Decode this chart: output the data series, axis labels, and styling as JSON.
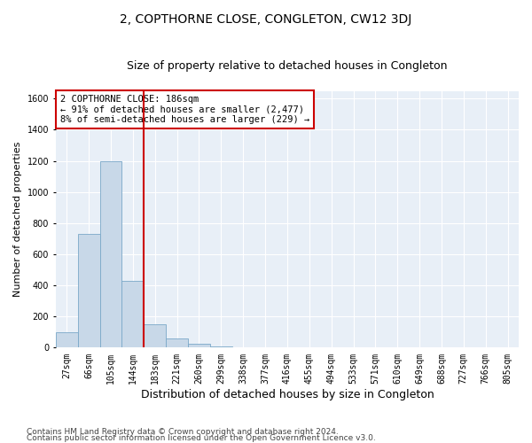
{
  "title": "2, COPTHORNE CLOSE, CONGLETON, CW12 3DJ",
  "subtitle": "Size of property relative to detached houses in Congleton",
  "xlabel": "Distribution of detached houses by size in Congleton",
  "ylabel": "Number of detached properties",
  "footer_line1": "Contains HM Land Registry data © Crown copyright and database right 2024.",
  "footer_line2": "Contains public sector information licensed under the Open Government Licence v3.0.",
  "bar_labels": [
    "27sqm",
    "66sqm",
    "105sqm",
    "144sqm",
    "183sqm",
    "221sqm",
    "260sqm",
    "299sqm",
    "338sqm",
    "377sqm",
    "416sqm",
    "455sqm",
    "494sqm",
    "533sqm",
    "571sqm",
    "610sqm",
    "649sqm",
    "688sqm",
    "727sqm",
    "766sqm",
    "805sqm"
  ],
  "bar_values": [
    100,
    730,
    1200,
    430,
    150,
    60,
    25,
    10,
    0,
    0,
    0,
    0,
    0,
    0,
    0,
    0,
    0,
    0,
    0,
    0,
    0
  ],
  "bar_color": "#c8d8e8",
  "bar_edgecolor": "#7aa8c8",
  "vline_color": "#cc0000",
  "annotation_text": "2 COPTHORNE CLOSE: 186sqm\n← 91% of detached houses are smaller (2,477)\n8% of semi-detached houses are larger (229) →",
  "annotation_box_edgecolor": "#cc0000",
  "annotation_box_facecolor": "#ffffff",
  "ylim_max": 1650,
  "yticks": [
    0,
    200,
    400,
    600,
    800,
    1000,
    1200,
    1400,
    1600
  ],
  "background_color": "#ffffff",
  "plot_bg_color": "#e8eff7",
  "grid_color": "#ffffff",
  "title_fontsize": 10,
  "subtitle_fontsize": 9,
  "tick_fontsize": 7,
  "ylabel_fontsize": 8,
  "xlabel_fontsize": 9,
  "annotation_fontsize": 7.5,
  "footer_fontsize": 6.5
}
